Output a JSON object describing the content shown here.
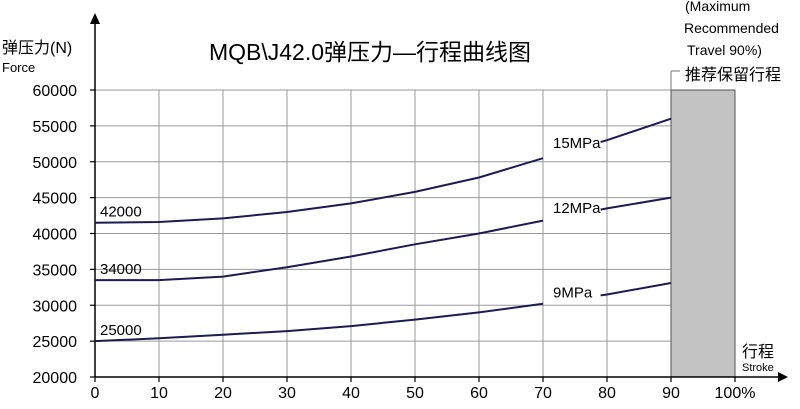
{
  "chart_data": {
    "type": "line",
    "title": "MQB\\J42.0弹压力—行程曲线图",
    "ylabel": "弹压力(N)",
    "ylabel_en": "Force",
    "xlabel": "行程",
    "xlabel_en": "Stroke",
    "xlim": [
      0,
      100
    ],
    "ylim": [
      20000,
      60000
    ],
    "x_ticks": [
      "0",
      "10",
      "20",
      "30",
      "40",
      "50",
      "60",
      "70",
      "80",
      "90",
      "100%"
    ],
    "y_ticks": [
      "20000",
      "25000",
      "30000",
      "35000",
      "40000",
      "45000",
      "50000",
      "55000",
      "60000"
    ],
    "grid": true,
    "shaded_region": {
      "x_range": [
        90,
        100
      ],
      "label": "推荐保留行程",
      "note_lines": [
        "(Maximum",
        "Recommended",
        "Travel 90%)"
      ]
    },
    "series": [
      {
        "name": "15MPa",
        "start_label": "42000",
        "x": [
          0,
          10,
          20,
          30,
          40,
          50,
          60,
          70,
          80,
          90
        ],
        "y": [
          41500,
          41600,
          42100,
          43000,
          44200,
          45800,
          47800,
          50500,
          53000,
          56000
        ]
      },
      {
        "name": "12MPa",
        "start_label": "34000",
        "x": [
          0,
          10,
          20,
          30,
          40,
          50,
          60,
          70,
          80,
          90
        ],
        "y": [
          33500,
          33500,
          34000,
          35300,
          36800,
          38500,
          40000,
          41800,
          43500,
          45000
        ]
      },
      {
        "name": "9MPa",
        "start_label": "25000",
        "x": [
          0,
          10,
          20,
          30,
          40,
          50,
          60,
          70,
          80,
          90
        ],
        "y": [
          25000,
          25400,
          25900,
          26400,
          27100,
          28000,
          29000,
          30200,
          31500,
          33100
        ]
      }
    ]
  }
}
